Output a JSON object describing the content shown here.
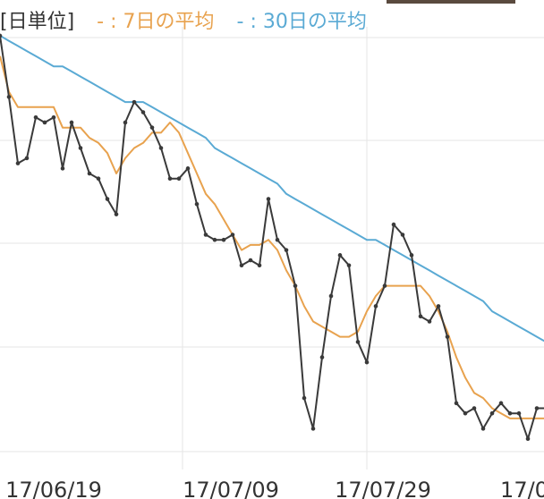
{
  "legend": {
    "unit_label": "[日単位]",
    "ma7_label": "- : 7日の平均",
    "ma30_label": "- : 30日の平均"
  },
  "colors": {
    "daily": "#3a3a3a",
    "ma7": "#e8a24e",
    "ma30": "#5aaad4",
    "grid": "#e6e6e6",
    "topbar": "#5a4a3e"
  },
  "chart_data": {
    "type": "line",
    "x_tick_labels": [
      "17/06/19",
      "17/07/09",
      "17/07/29",
      "17/0"
    ],
    "series": [
      {
        "key": "daily",
        "values": [
          93,
          81,
          68,
          69,
          77,
          76,
          77,
          67,
          76,
          71,
          66,
          65,
          61,
          58,
          76,
          80,
          78,
          75,
          71,
          65,
          65,
          67,
          60,
          54,
          53,
          53,
          54,
          48,
          49,
          48,
          61,
          53,
          51,
          44,
          22,
          16,
          30,
          42,
          50,
          48,
          33,
          29,
          40,
          44,
          56,
          54,
          50,
          38,
          37,
          40,
          34,
          21,
          19,
          20,
          16,
          19,
          21,
          19,
          19,
          14,
          20,
          20
        ],
        "ma7": null
      },
      {
        "key": "ma7",
        "values": [
          89,
          82,
          79,
          79,
          79,
          79,
          79,
          75,
          75,
          75,
          73,
          72,
          70,
          66,
          69,
          71,
          72,
          74,
          74,
          76,
          74,
          70,
          66,
          62,
          60,
          57,
          54,
          51,
          52,
          52,
          53,
          51,
          47,
          44,
          40,
          37,
          36,
          35,
          34,
          34,
          35,
          39,
          42,
          44,
          44,
          44,
          44,
          44,
          42,
          39,
          35,
          30,
          26,
          23,
          22,
          20,
          19,
          18,
          18,
          18,
          18,
          18
        ],
        "ma7_note": null
      },
      {
        "key": "ma30",
        "values": [
          93,
          92,
          91,
          90,
          89,
          88,
          87,
          87,
          86,
          85,
          84,
          83,
          82,
          81,
          80,
          80,
          80,
          79,
          78,
          77,
          76,
          75,
          74,
          73,
          71,
          70,
          69,
          68,
          67,
          66,
          65,
          64,
          62,
          61,
          60,
          59,
          58,
          57,
          56,
          55,
          54,
          53,
          53,
          52,
          51,
          50,
          49,
          48,
          47,
          46,
          45,
          44,
          43,
          42,
          41,
          39,
          38,
          37,
          36,
          35,
          34,
          33
        ],
        "ma30_note": null
      }
    ],
    "ylim": [
      8,
      100
    ],
    "grid": true
  }
}
